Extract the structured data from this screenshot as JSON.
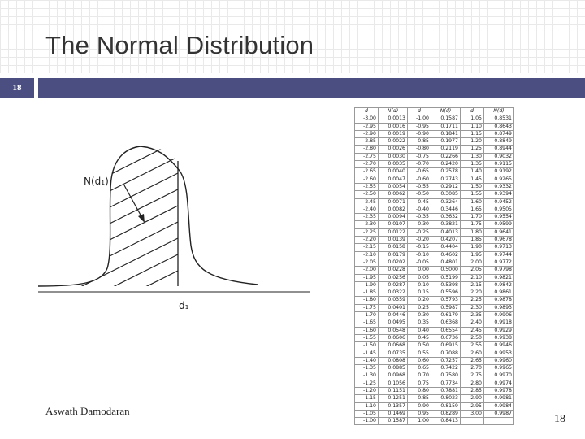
{
  "slide": {
    "title": "The Normal Distribution",
    "number_box": "18",
    "author": "Aswath Damodaran",
    "page_number": "18"
  },
  "figure": {
    "label_n": "N(d₁)",
    "label_d": "d₁"
  },
  "table": {
    "headers": [
      "d",
      "N(d)",
      "d",
      "N(d)",
      "d",
      "N(d)"
    ],
    "rows": [
      [
        "-3.00",
        "0.0013",
        "-1.00",
        "0.1587",
        "1.05",
        "0.8531"
      ],
      [
        "-2.95",
        "0.0016",
        "-0.95",
        "0.1711",
        "1.10",
        "0.8643"
      ],
      [
        "-2.90",
        "0.0019",
        "-0.90",
        "0.1841",
        "1.15",
        "0.8749"
      ],
      [
        "-2.85",
        "0.0022",
        "-0.85",
        "0.1977",
        "1.20",
        "0.8849"
      ],
      [
        "-2.80",
        "0.0026",
        "-0.80",
        "0.2119",
        "1.25",
        "0.8944"
      ],
      [
        "-2.75",
        "0.0030",
        "-0.75",
        "0.2266",
        "1.30",
        "0.9032"
      ],
      [
        "-2.70",
        "0.0035",
        "-0.70",
        "0.2420",
        "1.35",
        "0.9115"
      ],
      [
        "-2.65",
        "0.0040",
        "-0.65",
        "0.2578",
        "1.40",
        "0.9192"
      ],
      [
        "-2.60",
        "0.0047",
        "-0.60",
        "0.2743",
        "1.45",
        "0.9265"
      ],
      [
        "-2.55",
        "0.0054",
        "-0.55",
        "0.2912",
        "1.50",
        "0.9332"
      ],
      [
        "-2.50",
        "0.0062",
        "-0.50",
        "0.3085",
        "1.55",
        "0.9394"
      ],
      [
        "-2.45",
        "0.0071",
        "-0.45",
        "0.3264",
        "1.60",
        "0.9452"
      ],
      [
        "-2.40",
        "0.0082",
        "-0.40",
        "0.3446",
        "1.65",
        "0.9505"
      ],
      [
        "-2.35",
        "0.0094",
        "-0.35",
        "0.3632",
        "1.70",
        "0.9554"
      ],
      [
        "-2.30",
        "0.0107",
        "-0.30",
        "0.3821",
        "1.75",
        "0.9599"
      ],
      [
        "-2.25",
        "0.0122",
        "-0.25",
        "0.4013",
        "1.80",
        "0.9641"
      ],
      [
        "-2.20",
        "0.0139",
        "-0.20",
        "0.4207",
        "1.85",
        "0.9678"
      ],
      [
        "-2.15",
        "0.0158",
        "-0.15",
        "0.4404",
        "1.90",
        "0.9713"
      ],
      [
        "-2.10",
        "0.0179",
        "-0.10",
        "0.4602",
        "1.95",
        "0.9744"
      ],
      [
        "-2.05",
        "0.0202",
        "-0.05",
        "0.4801",
        "2.00",
        "0.9772"
      ],
      [
        "-2.00",
        "0.0228",
        "0.00",
        "0.5000",
        "2.05",
        "0.9798"
      ],
      [
        "-1.95",
        "0.0256",
        "0.05",
        "0.5199",
        "2.10",
        "0.9821"
      ],
      [
        "-1.90",
        "0.0287",
        "0.10",
        "0.5398",
        "2.15",
        "0.9842"
      ],
      [
        "-1.85",
        "0.0322",
        "0.15",
        "0.5596",
        "2.20",
        "0.9861"
      ],
      [
        "-1.80",
        "0.0359",
        "0.20",
        "0.5793",
        "2.25",
        "0.9878"
      ],
      [
        "-1.75",
        "0.0401",
        "0.25",
        "0.5987",
        "2.30",
        "0.9893"
      ],
      [
        "-1.70",
        "0.0446",
        "0.30",
        "0.6179",
        "2.35",
        "0.9906"
      ],
      [
        "-1.65",
        "0.0495",
        "0.35",
        "0.6368",
        "2.40",
        "0.9918"
      ],
      [
        "-1.60",
        "0.0548",
        "0.40",
        "0.6554",
        "2.45",
        "0.9929"
      ],
      [
        "-1.55",
        "0.0606",
        "0.45",
        "0.6736",
        "2.50",
        "0.9938"
      ],
      [
        "-1.50",
        "0.0668",
        "0.50",
        "0.6915",
        "2.55",
        "0.9946"
      ],
      [
        "-1.45",
        "0.0735",
        "0.55",
        "0.7088",
        "2.60",
        "0.9953"
      ],
      [
        "-1.40",
        "0.0808",
        "0.60",
        "0.7257",
        "2.65",
        "0.9960"
      ],
      [
        "-1.35",
        "0.0885",
        "0.65",
        "0.7422",
        "2.70",
        "0.9965"
      ],
      [
        "-1.30",
        "0.0968",
        "0.70",
        "0.7580",
        "2.75",
        "0.9970"
      ],
      [
        "-1.25",
        "0.1056",
        "0.75",
        "0.7734",
        "2.80",
        "0.9974"
      ],
      [
        "-1.20",
        "0.1151",
        "0.80",
        "0.7881",
        "2.85",
        "0.9978"
      ],
      [
        "-1.15",
        "0.1251",
        "0.85",
        "0.8023",
        "2.90",
        "0.9981"
      ],
      [
        "-1.10",
        "0.1357",
        "0.90",
        "0.8159",
        "2.95",
        "0.9984"
      ],
      [
        "-1.05",
        "0.1469",
        "0.95",
        "0.8289",
        "3.00",
        "0.9987"
      ],
      [
        "-1.00",
        "0.1587",
        "1.00",
        "0.8413",
        "",
        ""
      ]
    ]
  },
  "colors": {
    "bar": "#4a4e80",
    "title": "#333333"
  }
}
